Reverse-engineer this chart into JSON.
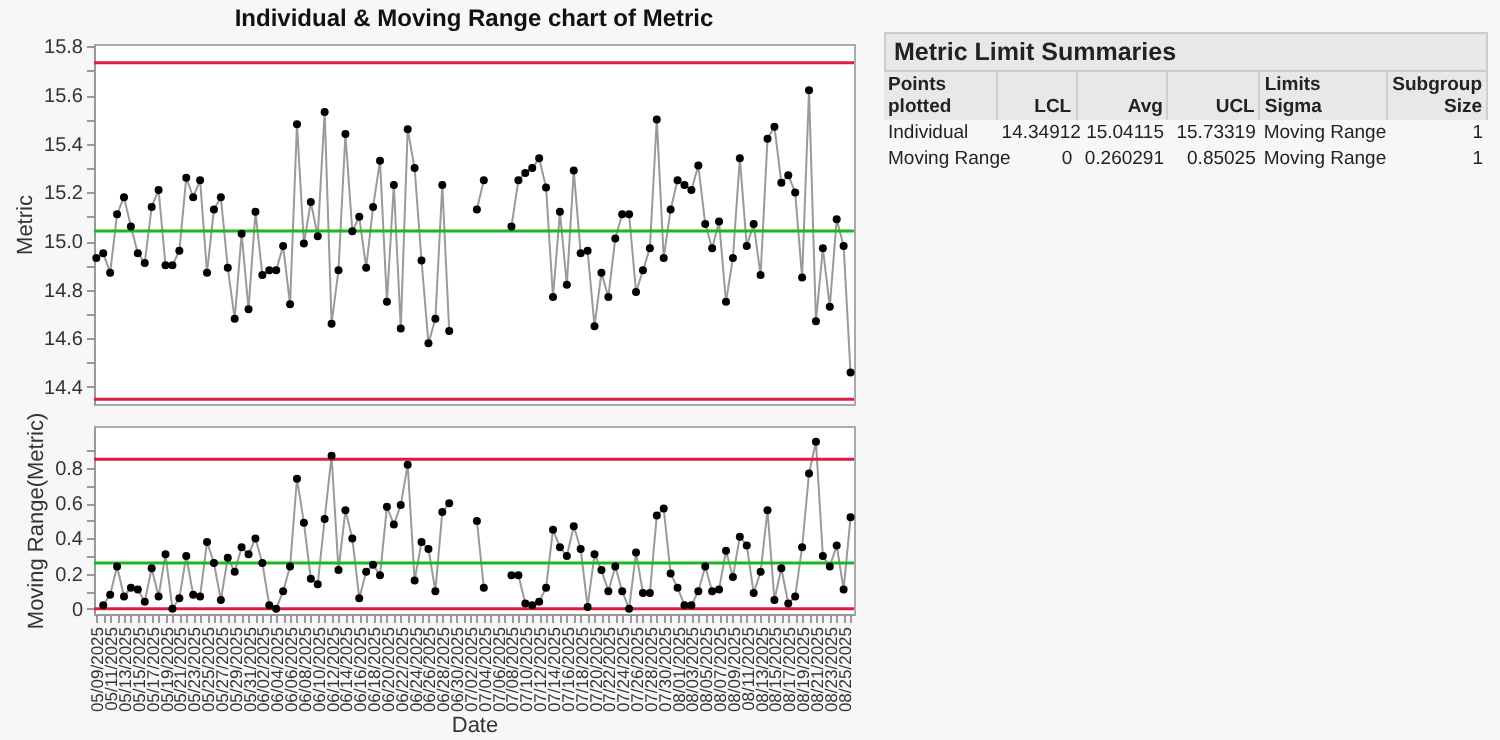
{
  "chart_data": [
    {
      "type": "line",
      "title": "Individual & Moving Range chart of Metric",
      "ylabel": "Metric",
      "tick_labels": "y",
      "marker": "circle",
      "x": [
        "2025-05-09",
        "2025-05-10",
        "2025-05-11",
        "2025-05-12",
        "2025-05-13",
        "2025-05-14",
        "2025-05-15",
        "2025-05-16",
        "2025-05-17",
        "2025-05-18",
        "2025-05-19",
        "2025-05-20",
        "2025-05-21",
        "2025-05-22",
        "2025-05-23",
        "2025-05-24",
        "2025-05-25",
        "2025-05-26",
        "2025-05-27",
        "2025-05-28",
        "2025-05-29",
        "2025-05-30",
        "2025-05-31",
        "2025-06-01",
        "2025-06-02",
        "2025-06-03",
        "2025-06-04",
        "2025-06-05",
        "2025-06-06",
        "2025-06-07",
        "2025-06-08",
        "2025-06-09",
        "2025-06-10",
        "2025-06-11",
        "2025-06-12",
        "2025-06-13",
        "2025-06-14",
        "2025-06-15",
        "2025-06-16",
        "2025-06-17",
        "2025-06-18",
        "2025-06-19",
        "2025-06-20",
        "2025-06-21",
        "2025-06-22",
        "2025-06-23",
        "2025-06-24",
        "2025-06-25",
        "2025-06-26",
        "2025-06-27",
        "2025-06-28",
        "2025-06-29",
        "2025-06-30",
        "2025-07-01",
        "2025-07-02",
        "2025-07-03",
        "2025-07-04",
        "2025-07-05",
        "2025-07-06",
        "2025-07-07",
        "2025-07-08",
        "2025-07-09",
        "2025-07-10",
        "2025-07-11",
        "2025-07-12",
        "2025-07-13",
        "2025-07-14",
        "2025-07-15",
        "2025-07-16",
        "2025-07-17",
        "2025-07-18",
        "2025-07-19",
        "2025-07-20",
        "2025-07-21",
        "2025-07-22",
        "2025-07-23",
        "2025-07-24",
        "2025-07-25",
        "2025-07-26",
        "2025-07-27",
        "2025-07-28",
        "2025-07-29",
        "2025-07-30",
        "2025-07-31",
        "2025-08-01",
        "2025-08-02",
        "2025-08-03",
        "2025-08-04",
        "2025-08-05",
        "2025-08-06",
        "2025-08-07",
        "2025-08-08",
        "2025-08-09",
        "2025-08-10",
        "2025-08-11",
        "2025-08-12",
        "2025-08-13",
        "2025-08-14",
        "2025-08-15",
        "2025-08-16",
        "2025-08-17",
        "2025-08-18",
        "2025-08-19",
        "2025-08-20",
        "2025-08-21",
        "2025-08-22",
        "2025-08-23",
        "2025-08-24",
        "2025-08-25",
        "2025-08-26"
      ],
      "xlim": [
        "2025-05-08T16:00",
        "2025-08-26T12:00"
      ],
      "ylim": [
        14.33,
        15.81
      ],
      "yticks": [
        14.4,
        {
          "value": 14.5,
          "label": null
        },
        14.6,
        {
          "value": 14.7,
          "label": null
        },
        14.8,
        {
          "value": 14.9,
          "label": null
        },
        {
          "value": 15,
          "label": "15.0"
        },
        {
          "value": 15.1,
          "label": null
        },
        15.2,
        {
          "value": 15.3,
          "label": null
        },
        15.4,
        {
          "value": 15.5,
          "label": null
        },
        15.6,
        {
          "value": 15.7,
          "label": null
        },
        15.8
      ],
      "series": [
        {
          "color": "#000000",
          "values": [
            14.93,
            14.95,
            14.87,
            15.11,
            15.18,
            15.06,
            14.95,
            14.91,
            15.14,
            15.21,
            14.9,
            14.9,
            14.96,
            15.26,
            15.18,
            15.25,
            14.87,
            15.13,
            15.18,
            14.89,
            14.68,
            15.03,
            14.72,
            15.12,
            14.86,
            14.88,
            14.88,
            14.98,
            14.74,
            15.48,
            14.99,
            15.16,
            15.02,
            15.53,
            14.66,
            14.88,
            15.44,
            15.04,
            15.1,
            14.89,
            15.14,
            15.33,
            14.75,
            15.23,
            14.64,
            15.46,
            15.3,
            14.92,
            14.58,
            14.68,
            15.23,
            14.63,
            null,
            null,
            null,
            15.13,
            15.25,
            null,
            null,
            null,
            15.06,
            15.25,
            15.28,
            15.3,
            15.34,
            15.22,
            14.77,
            15.12,
            14.82,
            15.29,
            14.95,
            14.96,
            14.65,
            14.87,
            14.77,
            15.01,
            15.11,
            15.11,
            14.79,
            14.88,
            14.97,
            15.5,
            14.93,
            15.13,
            15.25,
            15.23,
            15.21,
            15.31,
            15.07,
            14.97,
            15.08,
            14.75,
            14.93,
            15.34,
            14.98,
            15.07,
            14.86,
            15.42,
            15.47,
            15.24,
            15.27,
            15.2,
            14.85,
            15.62,
            14.67,
            14.97,
            14.73,
            15.09,
            14.98,
            14.46
          ]
        }
      ],
      "ref_lines": [
        {
          "axis": "y",
          "value": 14.34912,
          "color": "#dc1e3c"
        },
        {
          "axis": "y",
          "value": 15.04115,
          "color": "#1fb51f"
        },
        {
          "axis": "y",
          "value": 15.73319,
          "color": "#dc1e3c"
        }
      ]
    },
    {
      "type": "line",
      "xlabel": "Date",
      "ylabel": "Moving Range(Metric)",
      "marker": "circle",
      "x": [
        "2025-05-10",
        "2025-05-11",
        "2025-05-12",
        "2025-05-13",
        "2025-05-14",
        "2025-05-15",
        "2025-05-16",
        "2025-05-17",
        "2025-05-18",
        "2025-05-19",
        "2025-05-20",
        "2025-05-21",
        "2025-05-22",
        "2025-05-23",
        "2025-05-24",
        "2025-05-25",
        "2025-05-26",
        "2025-05-27",
        "2025-05-28",
        "2025-05-29",
        "2025-05-30",
        "2025-05-31",
        "2025-06-01",
        "2025-06-02",
        "2025-06-03",
        "2025-06-04",
        "2025-06-05",
        "2025-06-06",
        "2025-06-07",
        "2025-06-08",
        "2025-06-09",
        "2025-06-10",
        "2025-06-11",
        "2025-06-12",
        "2025-06-13",
        "2025-06-14",
        "2025-06-15",
        "2025-06-16",
        "2025-06-17",
        "2025-06-18",
        "2025-06-19",
        "2025-06-20",
        "2025-06-21",
        "2025-06-22",
        "2025-06-23",
        "2025-06-24",
        "2025-06-25",
        "2025-06-26",
        "2025-06-27",
        "2025-06-28",
        "2025-06-29",
        "2025-06-30",
        "2025-07-01",
        "2025-07-02",
        "2025-07-03",
        "2025-07-04",
        "2025-07-05",
        "2025-07-06",
        "2025-07-07",
        "2025-07-08",
        "2025-07-09",
        "2025-07-10",
        "2025-07-11",
        "2025-07-12",
        "2025-07-13",
        "2025-07-14",
        "2025-07-15",
        "2025-07-16",
        "2025-07-17",
        "2025-07-18",
        "2025-07-19",
        "2025-07-20",
        "2025-07-21",
        "2025-07-22",
        "2025-07-23",
        "2025-07-24",
        "2025-07-25",
        "2025-07-26",
        "2025-07-27",
        "2025-07-28",
        "2025-07-29",
        "2025-07-30",
        "2025-07-31",
        "2025-08-01",
        "2025-08-02",
        "2025-08-03",
        "2025-08-04",
        "2025-08-05",
        "2025-08-06",
        "2025-08-07",
        "2025-08-08",
        "2025-08-09",
        "2025-08-10",
        "2025-08-11",
        "2025-08-12",
        "2025-08-13",
        "2025-08-14",
        "2025-08-15",
        "2025-08-16",
        "2025-08-17",
        "2025-08-18",
        "2025-08-19",
        "2025-08-20",
        "2025-08-21",
        "2025-08-22",
        "2025-08-23",
        "2025-08-24",
        "2025-08-25",
        "2025-08-26"
      ],
      "xlim": [
        "2025-05-08T16:00",
        "2025-08-26T12:00"
      ],
      "xticks": [
        {
          "value": "2025-05-09",
          "label": "05/09/2025"
        },
        {
          "value": "2025-05-10",
          "label": null
        },
        {
          "value": "2025-05-11",
          "label": "05/11/2025"
        },
        {
          "value": "2025-05-12",
          "label": null
        },
        {
          "value": "2025-05-13",
          "label": "05/13/2025"
        },
        {
          "value": "2025-05-14",
          "label": null
        },
        {
          "value": "2025-05-15",
          "label": "05/15/2025"
        },
        {
          "value": "2025-05-16",
          "label": null
        },
        {
          "value": "2025-05-17",
          "label": "05/17/2025"
        },
        {
          "value": "2025-05-18",
          "label": null
        },
        {
          "value": "2025-05-19",
          "label": "05/19/2025"
        },
        {
          "value": "2025-05-20",
          "label": null
        },
        {
          "value": "2025-05-21",
          "label": "05/21/2025"
        },
        {
          "value": "2025-05-22",
          "label": null
        },
        {
          "value": "2025-05-23",
          "label": "05/23/2025"
        },
        {
          "value": "2025-05-24",
          "label": null
        },
        {
          "value": "2025-05-25",
          "label": "05/25/2025"
        },
        {
          "value": "2025-05-26",
          "label": null
        },
        {
          "value": "2025-05-27",
          "label": "05/27/2025"
        },
        {
          "value": "2025-05-28",
          "label": null
        },
        {
          "value": "2025-05-29",
          "label": "05/29/2025"
        },
        {
          "value": "2025-05-30",
          "label": null
        },
        {
          "value": "2025-05-31",
          "label": "05/31/2025"
        },
        {
          "value": "2025-06-01",
          "label": null
        },
        {
          "value": "2025-06-02",
          "label": "06/02/2025"
        },
        {
          "value": "2025-06-03",
          "label": null
        },
        {
          "value": "2025-06-04",
          "label": "06/04/2025"
        },
        {
          "value": "2025-06-05",
          "label": null
        },
        {
          "value": "2025-06-06",
          "label": "06/06/2025"
        },
        {
          "value": "2025-06-07",
          "label": null
        },
        {
          "value": "2025-06-08",
          "label": "06/08/2025"
        },
        {
          "value": "2025-06-09",
          "label": null
        },
        {
          "value": "2025-06-10",
          "label": "06/10/2025"
        },
        {
          "value": "2025-06-11",
          "label": null
        },
        {
          "value": "2025-06-12",
          "label": "06/12/2025"
        },
        {
          "value": "2025-06-13",
          "label": null
        },
        {
          "value": "2025-06-14",
          "label": "06/14/2025"
        },
        {
          "value": "2025-06-15",
          "label": null
        },
        {
          "value": "2025-06-16",
          "label": "06/16/2025"
        },
        {
          "value": "2025-06-17",
          "label": null
        },
        {
          "value": "2025-06-18",
          "label": "06/18/2025"
        },
        {
          "value": "2025-06-19",
          "label": null
        },
        {
          "value": "2025-06-20",
          "label": "06/20/2025"
        },
        {
          "value": "2025-06-21",
          "label": null
        },
        {
          "value": "2025-06-22",
          "label": "06/22/2025"
        },
        {
          "value": "2025-06-23",
          "label": null
        },
        {
          "value": "2025-06-24",
          "label": "06/24/2025"
        },
        {
          "value": "2025-06-25",
          "label": null
        },
        {
          "value": "2025-06-26",
          "label": "06/26/2025"
        },
        {
          "value": "2025-06-27",
          "label": null
        },
        {
          "value": "2025-06-28",
          "label": "06/28/2025"
        },
        {
          "value": "2025-06-29",
          "label": null
        },
        {
          "value": "2025-06-30",
          "label": "06/30/2025"
        },
        {
          "value": "2025-07-01",
          "label": null
        },
        {
          "value": "2025-07-02",
          "label": "07/02/2025"
        },
        {
          "value": "2025-07-03",
          "label": null
        },
        {
          "value": "2025-07-04",
          "label": "07/04/2025"
        },
        {
          "value": "2025-07-05",
          "label": null
        },
        {
          "value": "2025-07-06",
          "label": "07/06/2025"
        },
        {
          "value": "2025-07-07",
          "label": null
        },
        {
          "value": "2025-07-08",
          "label": "07/08/2025"
        },
        {
          "value": "2025-07-09",
          "label": null
        },
        {
          "value": "2025-07-10",
          "label": "07/10/2025"
        },
        {
          "value": "2025-07-11",
          "label": null
        },
        {
          "value": "2025-07-12",
          "label": "07/12/2025"
        },
        {
          "value": "2025-07-13",
          "label": null
        },
        {
          "value": "2025-07-14",
          "label": "07/14/2025"
        },
        {
          "value": "2025-07-15",
          "label": null
        },
        {
          "value": "2025-07-16",
          "label": "07/16/2025"
        },
        {
          "value": "2025-07-17",
          "label": null
        },
        {
          "value": "2025-07-18",
          "label": "07/18/2025"
        },
        {
          "value": "2025-07-19",
          "label": null
        },
        {
          "value": "2025-07-20",
          "label": "07/20/2025"
        },
        {
          "value": "2025-07-21",
          "label": null
        },
        {
          "value": "2025-07-22",
          "label": "07/22/2025"
        },
        {
          "value": "2025-07-23",
          "label": null
        },
        {
          "value": "2025-07-24",
          "label": "07/24/2025"
        },
        {
          "value": "2025-07-25",
          "label": null
        },
        {
          "value": "2025-07-26",
          "label": "07/26/2025"
        },
        {
          "value": "2025-07-27",
          "label": null
        },
        {
          "value": "2025-07-28",
          "label": "07/28/2025"
        },
        {
          "value": "2025-07-29",
          "label": null
        },
        {
          "value": "2025-07-30",
          "label": "07/30/2025"
        },
        {
          "value": "2025-07-31",
          "label": null
        },
        {
          "value": "2025-08-01",
          "label": "08/01/2025"
        },
        {
          "value": "2025-08-02",
          "label": null
        },
        {
          "value": "2025-08-03",
          "label": "08/03/2025"
        },
        {
          "value": "2025-08-04",
          "label": null
        },
        {
          "value": "2025-08-05",
          "label": "08/05/2025"
        },
        {
          "value": "2025-08-06",
          "label": null
        },
        {
          "value": "2025-08-07",
          "label": "08/07/2025"
        },
        {
          "value": "2025-08-08",
          "label": null
        },
        {
          "value": "2025-08-09",
          "label": "08/09/2025"
        },
        {
          "value": "2025-08-10",
          "label": null
        },
        {
          "value": "2025-08-11",
          "label": "08/11/2025"
        },
        {
          "value": "2025-08-12",
          "label": null
        },
        {
          "value": "2025-08-13",
          "label": "08/13/2025"
        },
        {
          "value": "2025-08-14",
          "label": null
        },
        {
          "value": "2025-08-15",
          "label": "08/15/2025"
        },
        {
          "value": "2025-08-16",
          "label": null
        },
        {
          "value": "2025-08-17",
          "label": "08/17/2025"
        },
        {
          "value": "2025-08-18",
          "label": null
        },
        {
          "value": "2025-08-19",
          "label": "08/19/2025"
        },
        {
          "value": "2025-08-20",
          "label": null
        },
        {
          "value": "2025-08-21",
          "label": "08/21/2025"
        },
        {
          "value": "2025-08-22",
          "label": null
        },
        {
          "value": "2025-08-23",
          "label": "08/23/2025"
        },
        {
          "value": "2025-08-24",
          "label": null
        },
        {
          "value": "2025-08-25",
          "label": "08/25/2025"
        },
        {
          "value": "2025-08-26",
          "label": null
        }
      ],
      "ylim": [
        -0.03,
        1.04
      ],
      "yticks": [
        0,
        {
          "value": 0.1,
          "label": null
        },
        0.2,
        {
          "value": 0.3,
          "label": null
        },
        0.4,
        {
          "value": 0.5,
          "label": null
        },
        0.6,
        {
          "value": 0.7,
          "label": null
        },
        0.8,
        {
          "value": 0.9,
          "label": null
        }
      ],
      "series": [
        {
          "color": "#000000",
          "values": [
            0.02,
            0.08,
            0.24,
            0.07,
            0.12,
            0.11,
            0.04,
            0.23,
            0.07,
            0.31,
            0.0,
            0.06,
            0.3,
            0.08,
            0.07,
            0.38,
            0.26,
            0.05,
            0.29,
            0.21,
            0.35,
            0.31,
            0.4,
            0.26,
            0.02,
            0.0,
            0.1,
            0.24,
            0.74,
            0.49,
            0.17,
            0.14,
            0.51,
            0.87,
            0.22,
            0.56,
            0.4,
            0.06,
            0.21,
            0.25,
            0.19,
            0.58,
            0.48,
            0.59,
            0.82,
            0.16,
            0.38,
            0.34,
            0.1,
            0.55,
            0.6,
            null,
            null,
            null,
            0.5,
            0.12,
            null,
            null,
            null,
            0.19,
            0.19,
            0.03,
            0.02,
            0.04,
            0.12,
            0.45,
            0.35,
            0.3,
            0.47,
            0.34,
            0.01,
            0.31,
            0.22,
            0.1,
            0.24,
            0.1,
            0.0,
            0.32,
            0.09,
            0.09,
            0.53,
            0.57,
            0.2,
            0.12,
            0.02,
            0.02,
            0.1,
            0.24,
            0.1,
            0.11,
            0.33,
            0.18,
            0.41,
            0.36,
            0.09,
            0.21,
            0.56,
            0.05,
            0.23,
            0.03,
            0.07,
            0.35,
            0.77,
            0.95,
            0.3,
            0.24,
            0.36,
            0.11,
            0.52
          ]
        }
      ],
      "ref_lines": [
        {
          "axis": "y",
          "value": 0,
          "color": "#dc1e3c"
        },
        {
          "axis": "y",
          "value": 0.260291,
          "color": "#1fb51f"
        },
        {
          "axis": "y",
          "value": 0.85025,
          "color": "#dc1e3c"
        }
      ]
    },
    {
      "type": "other",
      "title": "Metric Limit Summaries",
      "annotations": [
        "Points plotted",
        "LCL",
        "Avg",
        "UCL",
        "Limits Sigma",
        "Subgroup Size",
        "Individual",
        "14.34912",
        "15.04115",
        "15.73319",
        "Moving Range",
        "1",
        "Moving Range",
        "0",
        "0.260291",
        "0.85025",
        "Moving Range",
        "1"
      ]
    }
  ]
}
